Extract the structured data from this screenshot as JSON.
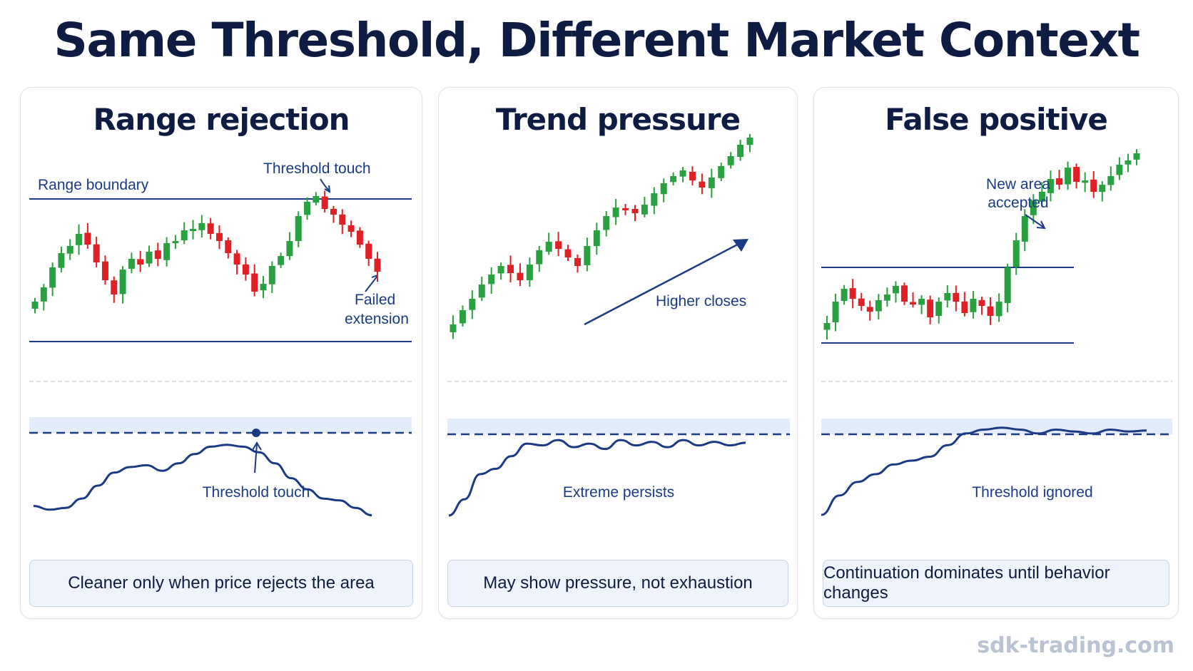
{
  "title": "Same Threshold, Different Market Context",
  "footer": "sdk-trading.com",
  "colors": {
    "bull": "#2aa140",
    "bear": "#e02025",
    "line": "#1b3a86",
    "band": "#e3ecfa"
  },
  "panels": [
    {
      "title": "Range rejection",
      "labels": {
        "boundary": "Range boundary",
        "touch_top": "Threshold touch",
        "failed_1": "Failed",
        "failed_2": "extension",
        "touch_osc": "Threshold touch"
      },
      "summary": "Cleaner only when price rejects the area",
      "candles": [
        [
          0,
          -5,
          0,
          12,
          -6
        ],
        [
          0,
          -3,
          -10,
          8,
          -12
        ],
        [
          0,
          -12,
          -30,
          -5,
          -34
        ],
        [
          0,
          -20,
          -35,
          -15,
          -40
        ],
        [
          1,
          -38,
          -33,
          -44,
          -28
        ],
        [
          0,
          -25,
          -48,
          -20,
          -50
        ],
        [
          1,
          -22,
          -8,
          -26,
          -4
        ],
        [
          1,
          -10,
          4,
          -12,
          8
        ],
        [
          0,
          8,
          -4,
          12,
          -7
        ],
        [
          1,
          -2,
          10,
          -5,
          14
        ],
        [
          0,
          -12,
          -10,
          -18,
          -6
        ],
        [
          0,
          -10,
          -22,
          -6,
          -24
        ],
        [
          1,
          -18,
          -16,
          -26,
          -12
        ],
        [
          1,
          -18,
          -30,
          -15,
          -34
        ],
        [
          0,
          -20,
          -32,
          -18,
          -36
        ],
        [
          0,
          -28,
          -30,
          -30,
          -27
        ],
        [
          1,
          -28,
          -20,
          -30,
          -16
        ],
        [
          0,
          -18,
          -4,
          -20,
          0
        ],
        [
          1,
          -4,
          2,
          -6,
          10
        ],
        [
          0,
          4,
          -10,
          8,
          -12
        ],
        [
          0,
          -12,
          -8,
          -14,
          -5
        ],
        [
          0,
          -8,
          -25,
          -5,
          -28
        ],
        [
          1,
          -22,
          -14,
          -25,
          -10
        ],
        [
          0,
          -18,
          -30,
          -15,
          -32
        ],
        [
          0,
          -28,
          -40,
          -24,
          -44
        ],
        [
          0,
          -40,
          -52,
          -36,
          -56
        ],
        [
          1,
          -52,
          -62,
          -50,
          -66
        ]
      ],
      "osc": [
        0.82,
        0.86,
        0.84,
        0.74,
        0.6,
        0.46,
        0.4,
        0.38,
        0.44,
        0.36,
        0.26,
        0.18,
        0.16,
        0.18,
        0.24,
        0.36,
        0.52,
        0.64,
        0.74,
        0.76,
        0.84,
        0.92
      ]
    },
    {
      "title": "Trend pressure",
      "labels": {
        "higher": "Higher closes",
        "extreme": "Extreme persists"
      },
      "summary": "May show pressure, not exhaustion",
      "osc": [
        0.92,
        0.74,
        0.46,
        0.4,
        0.26,
        0.12,
        0.14,
        0.08,
        0.16,
        0.12,
        0.18,
        0.08,
        0.14,
        0.1,
        0.16,
        0.08,
        0.14,
        0.1,
        0.14,
        0.11
      ]
    },
    {
      "title": "False positive",
      "labels": {
        "accepted_1": "New area",
        "accepted_2": "accepted",
        "ignored": "Threshold ignored"
      },
      "summary": "Continuation dominates until behavior changes",
      "osc": [
        0.92,
        0.72,
        0.58,
        0.5,
        0.4,
        0.36,
        0.32,
        0.2,
        0.08,
        0.04,
        0.02,
        0.04,
        0.08,
        0.04,
        0.06,
        0.08,
        0.04,
        0.06,
        0.05
      ]
    }
  ]
}
